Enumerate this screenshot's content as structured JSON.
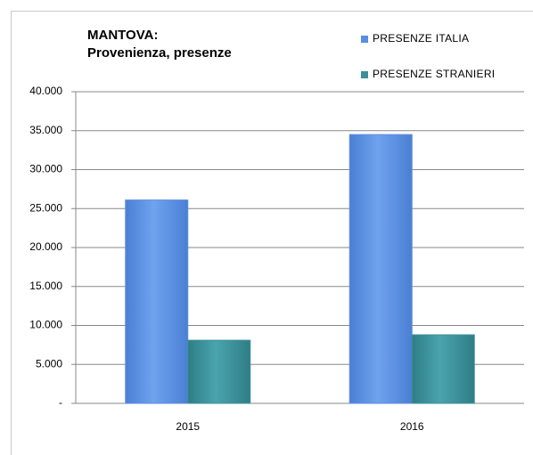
{
  "chart_data": {
    "type": "bar",
    "title": "MANTOVA:",
    "subtitle": "Provenienza,  presenze",
    "categories": [
      "2015",
      "2016"
    ],
    "series": [
      {
        "name": "PRESENZE ITALIA",
        "color": "#5a8ee0",
        "values": [
          26100,
          34500
        ]
      },
      {
        "name": "PRESENZE STRANIERI",
        "color": "#3b9099",
        "values": [
          8100,
          8800
        ]
      }
    ],
    "ylim": [
      0,
      40000
    ],
    "yticks": [
      {
        "value": 0,
        "label": "-"
      },
      {
        "value": 5000,
        "label": "5.000"
      },
      {
        "value": 10000,
        "label": "10.000"
      },
      {
        "value": 15000,
        "label": "15.000"
      },
      {
        "value": 20000,
        "label": "20.000"
      },
      {
        "value": 25000,
        "label": "25.000"
      },
      {
        "value": 30000,
        "label": "30.000"
      },
      {
        "value": 35000,
        "label": "35.000"
      },
      {
        "value": 40000,
        "label": "40.000"
      }
    ],
    "grid": true,
    "legend": "top-right"
  }
}
